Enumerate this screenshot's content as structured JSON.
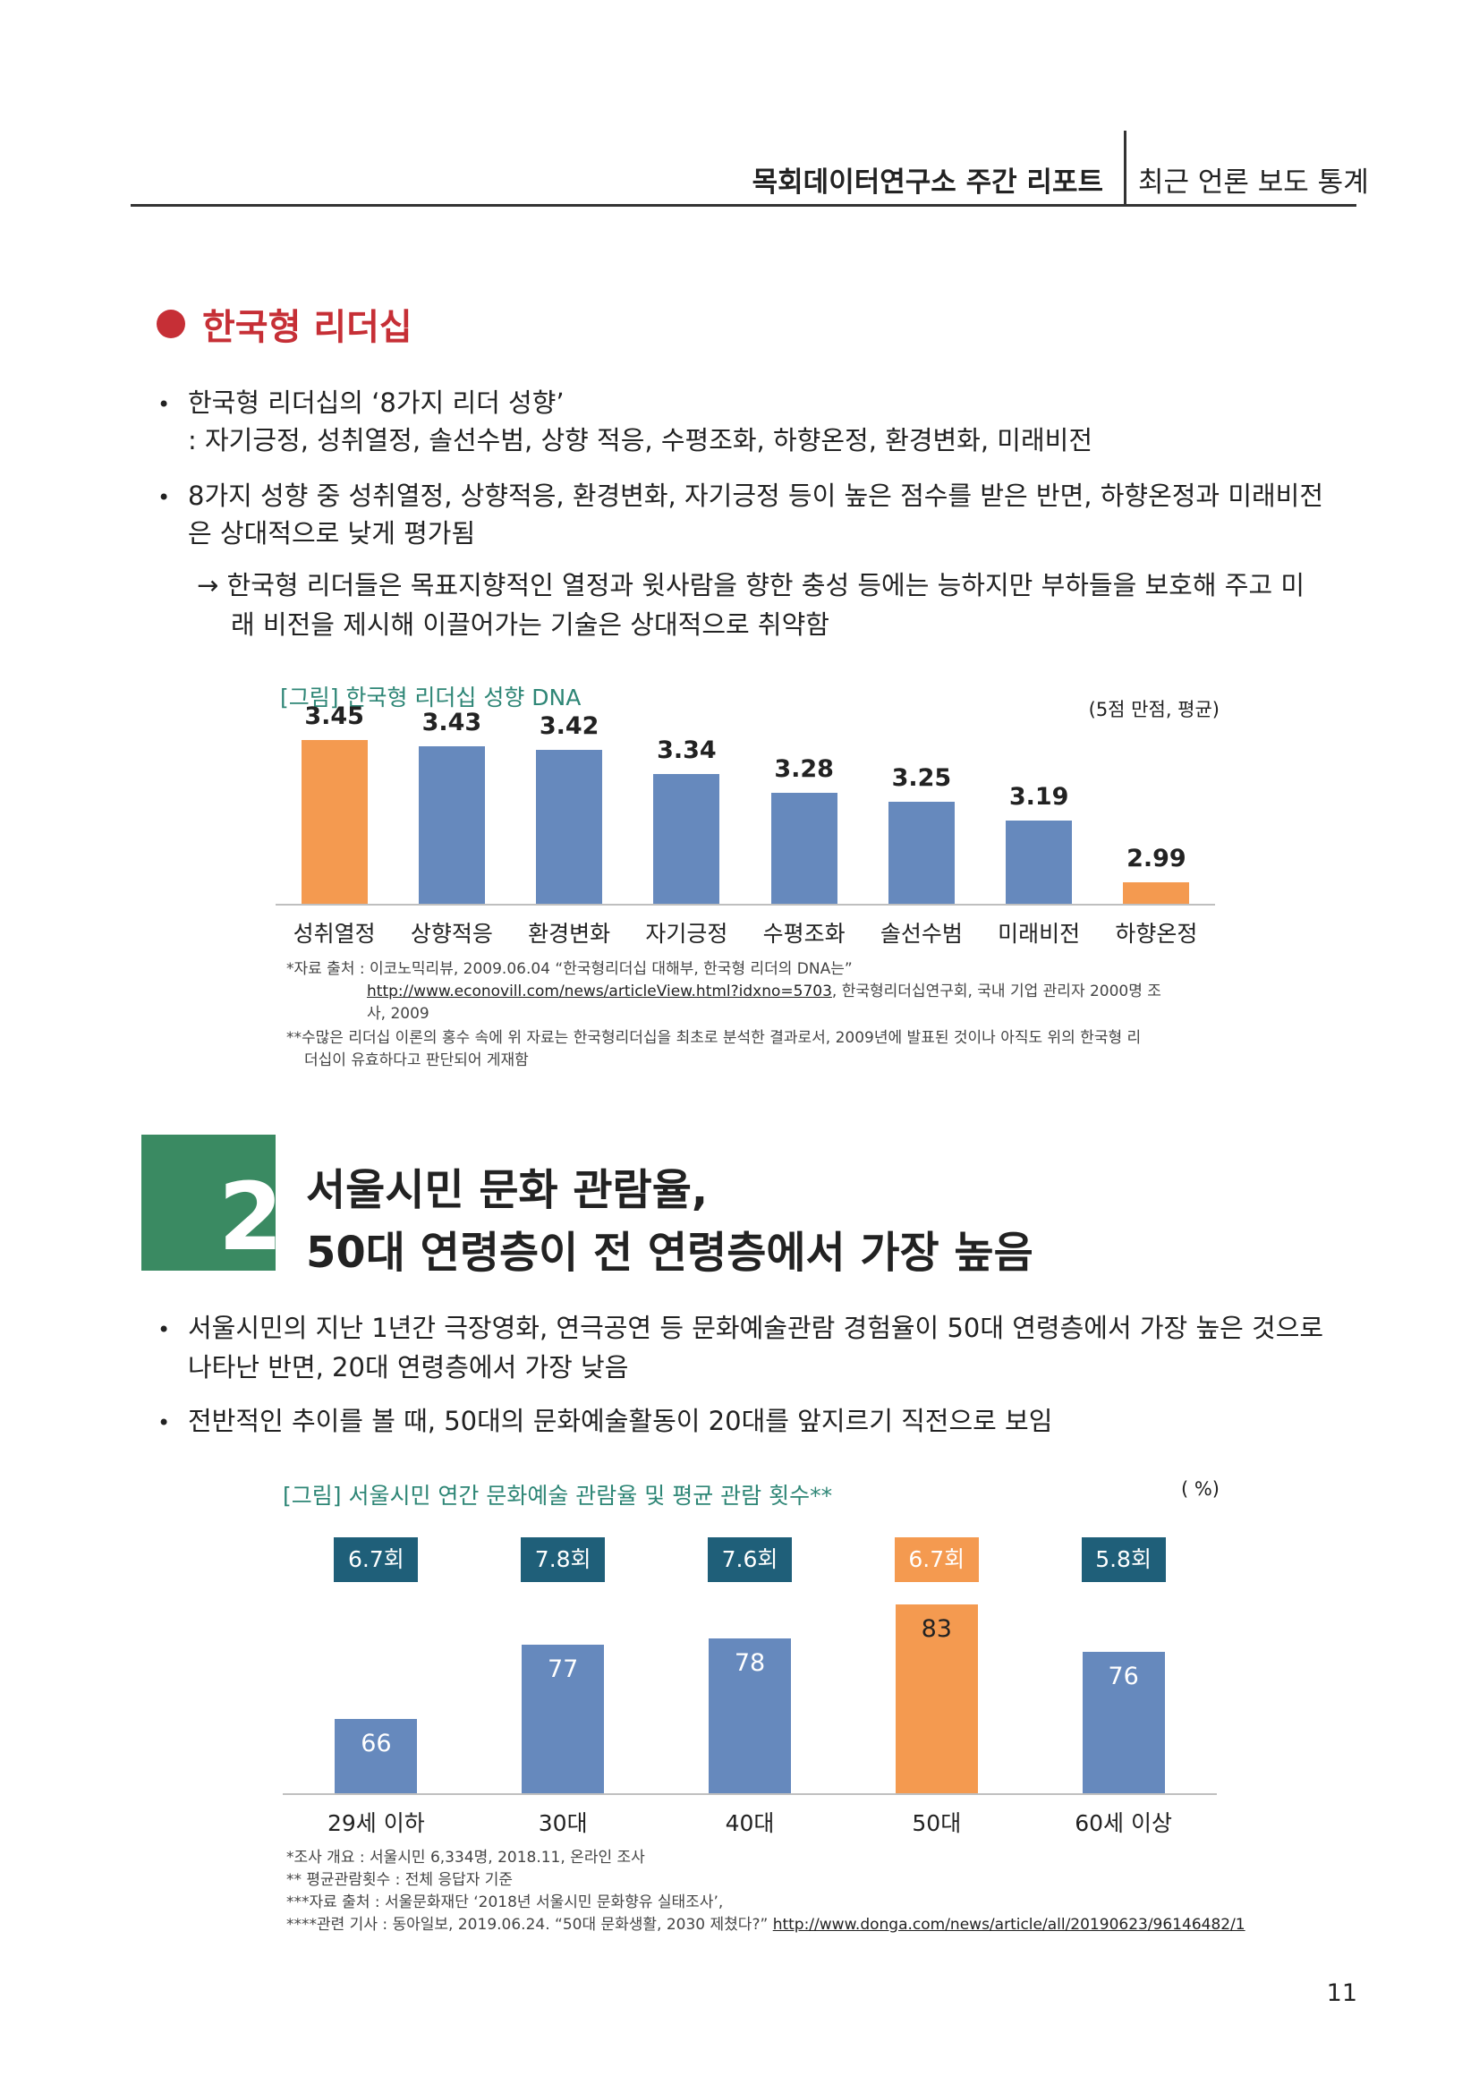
{
  "header": {
    "report_title": "목회데이터연구소 주간 리포트",
    "section": "최근 언론 보도 통계"
  },
  "section1": {
    "title": "한국형 리더십",
    "bullet1_line1": "한국형 리더십의 ‘8가지 리더 성향’",
    "bullet1_line2": ": 자기긍정, 성취열정, 솔선수범, 상향 적응, 수평조화, 하향온정, 환경변화, 미래비전",
    "bullet2_line1": " 8가지 성향 중 성취열정, 상향적응, 환경변화, 자기긍정 등이 높은 점수를 받은 반면, 하향온정과 미래비전",
    "bullet2_line2": "은 상대적으로 낮게 평가됨",
    "arrow_line1": "→ 한국형 리더들은 목표지향적인 열정과 윗사람을 향한 충성 등에는 능하지만 부하들을 보호해 주고 미",
    "arrow_line2": "래 비전을 제시해 이끌어가는 기술은 상대적으로 취약함",
    "figure_caption": "[그림] 한국형 리더십 성향 DNA",
    "unit": "(5점 만점, 평균)",
    "note1_a": "*자료 출처 : 이코노믹리뷰, 2009.06.04 “한국형리더십 대해부, 한국형 리더의 DNA는”",
    "note1_link": "http://www.econovill.com/news/articleView.html?idxno=5703",
    "note1_b": ", 한국형리더십연구회, 국내 기업 관리자 2000명 조",
    "note1_c": "사, 2009",
    "note2_a": "**수많은 리더십 이론의 홍수 속에 위 자료는 한국형리더십을 최초로 분석한 결과로서, 2009년에 발표된 것이나 아직도 위의 한국형 리",
    "note2_b": "더십이 유효하다고 판단되어 게재함"
  },
  "section2": {
    "number": "2",
    "title_line1": "서울시민 문화 관람율,",
    "title_line2": "50대 연령층이 전 연령층에서 가장 높음",
    "bullet1_line1": "서울시민의 지난 1년간 극장영화, 연극공연 등 문화예술관람 경험율이 50대 연령층에서 가장 높은 것으로",
    "bullet1_line2": "나타난 반면, 20대 연령층에서 가장 낮음",
    "bullet2": "전반적인 추이를 볼 때, 50대의 문화예술활동이 20대를 앞지르기 직전으로 보임",
    "figure_caption": "[그림] 서울시민 연간 문화예술 관람율 및 평균 관람 횟수**",
    "unit": "( %)",
    "note1": "*조사 개요 : 서울시민 6,334명, 2018.11, 온라인 조사",
    "note2": "** 평균관람횟수 : 전체 응답자 기준",
    "note3": "***자료 출처 : 서울문화재단 ‘2018년 서울시민 문화향유 실태조사’,",
    "note4_a": "****관련 기사 : 동아일보, 2019.06.24. “50대 문화생활, 2030 제쳤다?”",
    "note4_link": "http://www.donga.com/news/article/all/20190623/96146482/1"
  },
  "chart_data": [
    {
      "type": "bar",
      "title": "[그림] 한국형 리더십 성향 DNA",
      "unit": "(5점 만점, 평균)",
      "categories": [
        "성취열정",
        "상향적응",
        "환경변화",
        "자기긍정",
        "수평조화",
        "솔선수범",
        "미래비전",
        "하향온정"
      ],
      "values": [
        3.45,
        3.43,
        3.42,
        3.34,
        3.28,
        3.25,
        3.19,
        2.99
      ],
      "value_labels": [
        "3.45",
        "3.43",
        "3.42",
        "3.34",
        "3.28",
        "3.25",
        "3.19",
        "2.99"
      ],
      "highlight": [
        true,
        false,
        false,
        false,
        false,
        false,
        false,
        true
      ],
      "ylim": [
        2.92,
        3.5
      ],
      "colors": {
        "default": "#6689bd",
        "highlight": "#f49a50",
        "label_default": "#222222",
        "label_highlight": "#222222"
      }
    },
    {
      "type": "bar",
      "title": "[그림] 서울시민 연간 문화예술 관람율 및 평균 관람 횟수**",
      "unit": "( %)",
      "categories": [
        "29세 이하",
        "30대",
        "40대",
        "50대",
        "60세 이상"
      ],
      "values": [
        66,
        77,
        78,
        83,
        76
      ],
      "value_labels": [
        "66",
        "77",
        "78",
        "83",
        "76"
      ],
      "counts": [
        "6.7회",
        "7.8회",
        "7.6회",
        "6.7회",
        "5.8회"
      ],
      "highlight": [
        false,
        false,
        false,
        true,
        false
      ],
      "ylim": [
        55,
        85
      ],
      "colors": {
        "default": "#6689bd",
        "highlight": "#f49a50",
        "count_default": "#1f5f79",
        "count_highlight": "#f49a50"
      }
    }
  ],
  "page_number": "11"
}
